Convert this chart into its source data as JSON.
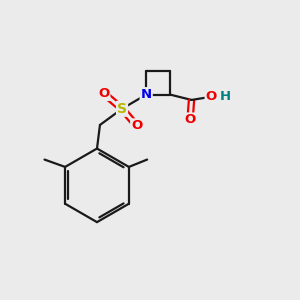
{
  "background_color": "#ebebeb",
  "bond_color": "#1a1a1a",
  "S_color": "#b8b800",
  "N_color": "#0000ee",
  "O_color": "#ee0000",
  "OH_color": "#008080",
  "line_width": 1.6,
  "figsize": [
    3.0,
    3.0
  ],
  "dpi": 100,
  "xlim": [
    0,
    10
  ],
  "ylim": [
    0,
    10
  ]
}
